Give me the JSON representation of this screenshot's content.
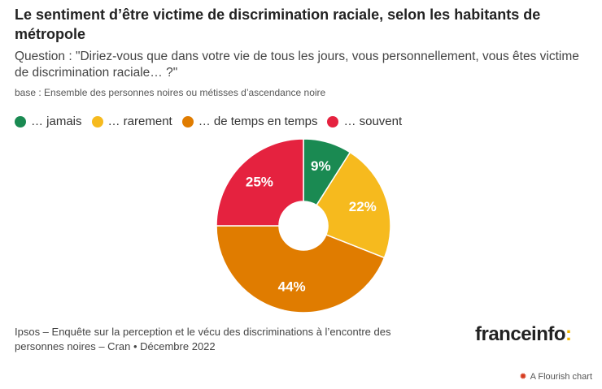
{
  "header": {
    "title": "Le sentiment d’être victime de discrimination raciale, selon les habitants de métropole",
    "subtitle": "Question : \"Diriez-vous que dans votre vie de tous les jours, vous personnellement, vous êtes victime de discrimination raciale… ?\"",
    "base": "base : Ensemble des personnes noires ou métisses d’ascendance noire"
  },
  "chart_data": {
    "type": "pie",
    "donut": true,
    "categories": [
      "… jamais",
      "… rarement",
      "… de temps en temps",
      "… souvent"
    ],
    "values": [
      9,
      22,
      44,
      25
    ],
    "labels": [
      "9%",
      "22%",
      "44%",
      "25%"
    ],
    "colors": [
      "#1a8a52",
      "#f6ba1e",
      "#e07c00",
      "#e5223f"
    ],
    "unit": "%",
    "legend_position": "top-left"
  },
  "footer": {
    "source": "Ipsos – Enquête sur la perception et le vécu des discriminations à l’encontre des personnes noires – Cran • Décembre 2022",
    "logo_text": "franceinfo",
    "logo_colon": ":",
    "logo_colon_color": "#f2b700",
    "flourish_label": "A Flourish chart",
    "flourish_icon": "flourish-sun-icon"
  }
}
